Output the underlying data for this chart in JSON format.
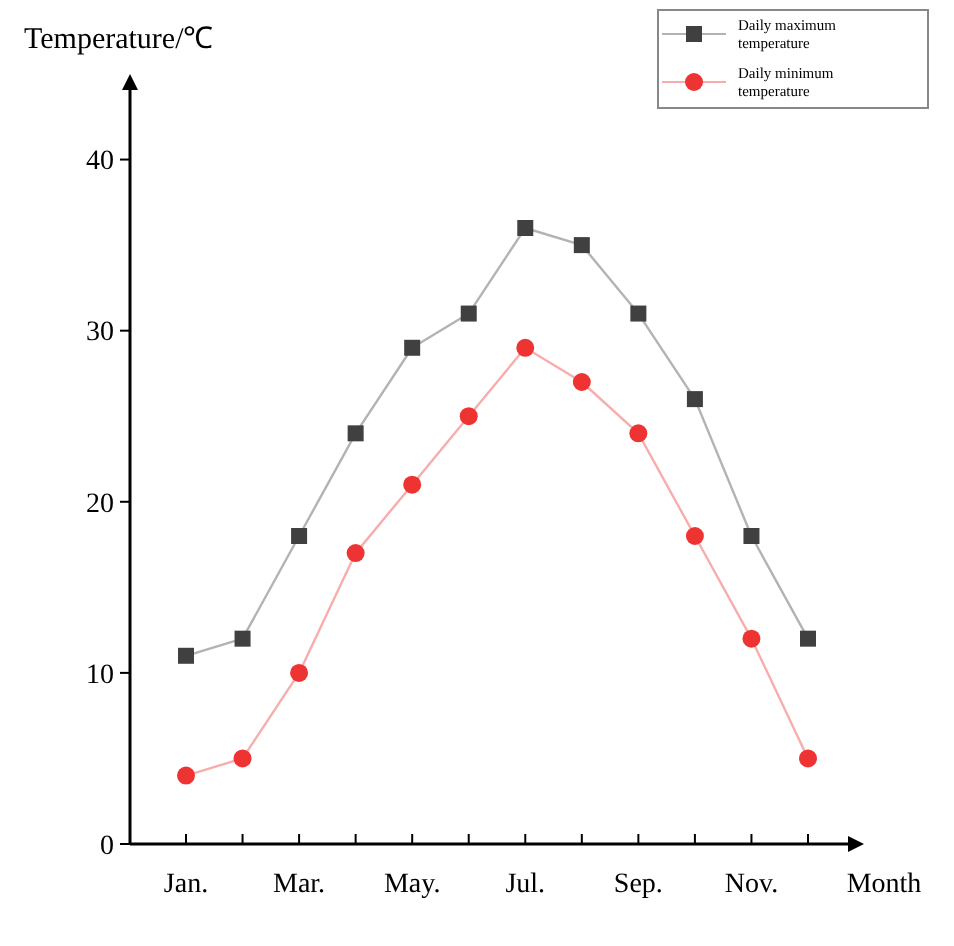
{
  "chart_data": {
    "type": "line",
    "xlabel": "Month",
    "ylabel": "Temperature/℃",
    "categories": [
      "Jan.",
      null,
      "Mar.",
      null,
      "May.",
      null,
      "Jul.",
      null,
      "Sep.",
      null,
      "Nov.",
      null
    ],
    "series": [
      {
        "name": "Daily maximum temperature",
        "color": "#404040",
        "marker": "square",
        "values": [
          11,
          12,
          18,
          24,
          29,
          31,
          36,
          35,
          31,
          26,
          18,
          12
        ]
      },
      {
        "name": "Daily minimum temperature",
        "color": "#ee3333",
        "marker": "circle",
        "values": [
          4,
          5,
          10,
          17,
          21,
          25,
          29,
          27,
          24,
          18,
          12,
          5
        ]
      }
    ],
    "ylim": [
      0,
      45
    ],
    "yticks": [
      0,
      10,
      20,
      30,
      40
    ],
    "grid": false,
    "legend": "top right",
    "line_style": "solid"
  }
}
